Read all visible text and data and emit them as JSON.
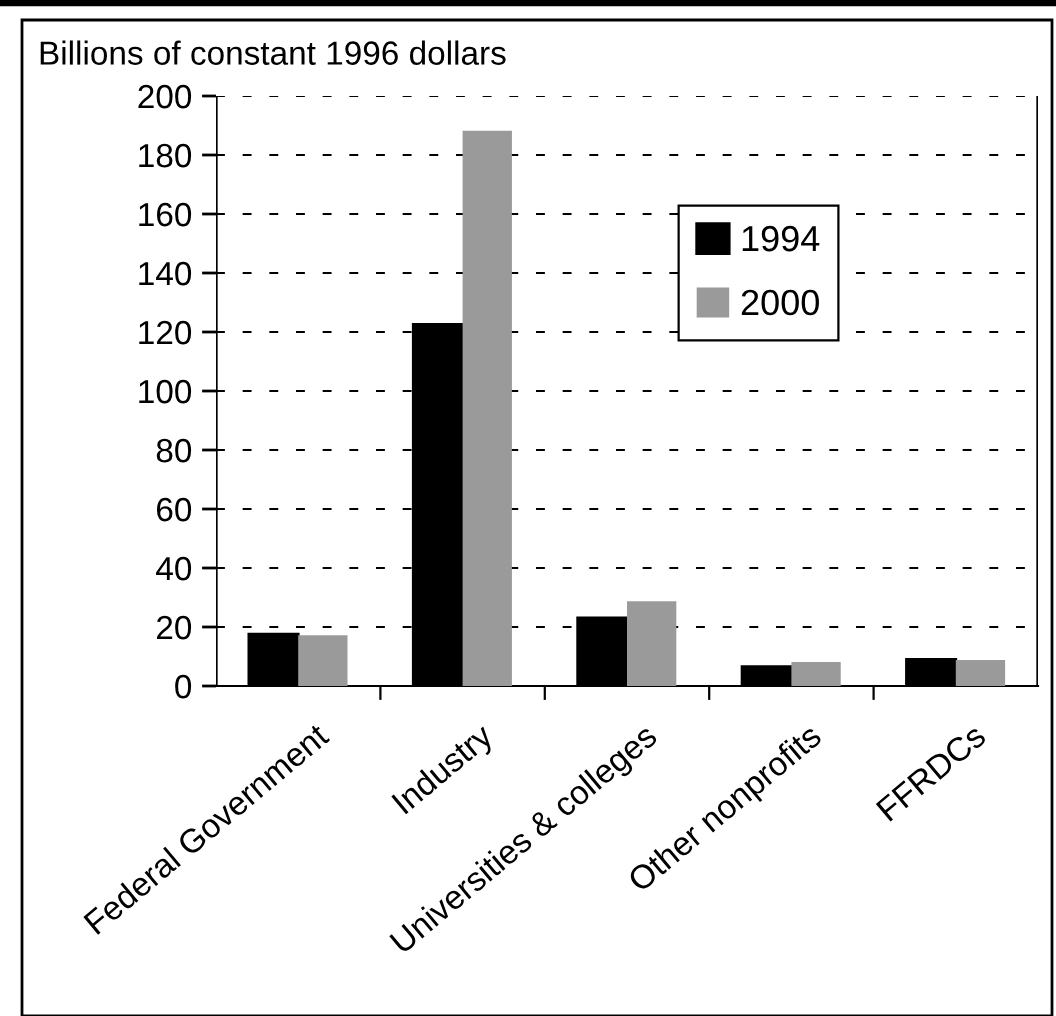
{
  "chart_data": {
    "type": "bar",
    "ylabel": "Billions of constant 1996 dollars",
    "categories": [
      "Federal Government",
      "Industry",
      "Universities & colleges",
      "Other nonprofits",
      "FFRDCs"
    ],
    "series": [
      {
        "name": "1994",
        "color": "#000000",
        "values": [
          17.6,
          122.6,
          23.1,
          6.6,
          9.0
        ]
      },
      {
        "name": "2000",
        "color": "#9a9a9a",
        "values": [
          17.2,
          188.2,
          28.7,
          8.1,
          8.8
        ]
      }
    ],
    "ylim": [
      0,
      200
    ],
    "yticks": [
      0,
      20,
      40,
      60,
      80,
      100,
      120,
      140,
      160,
      180,
      200
    ],
    "grid": "y",
    "legend": "top right"
  }
}
